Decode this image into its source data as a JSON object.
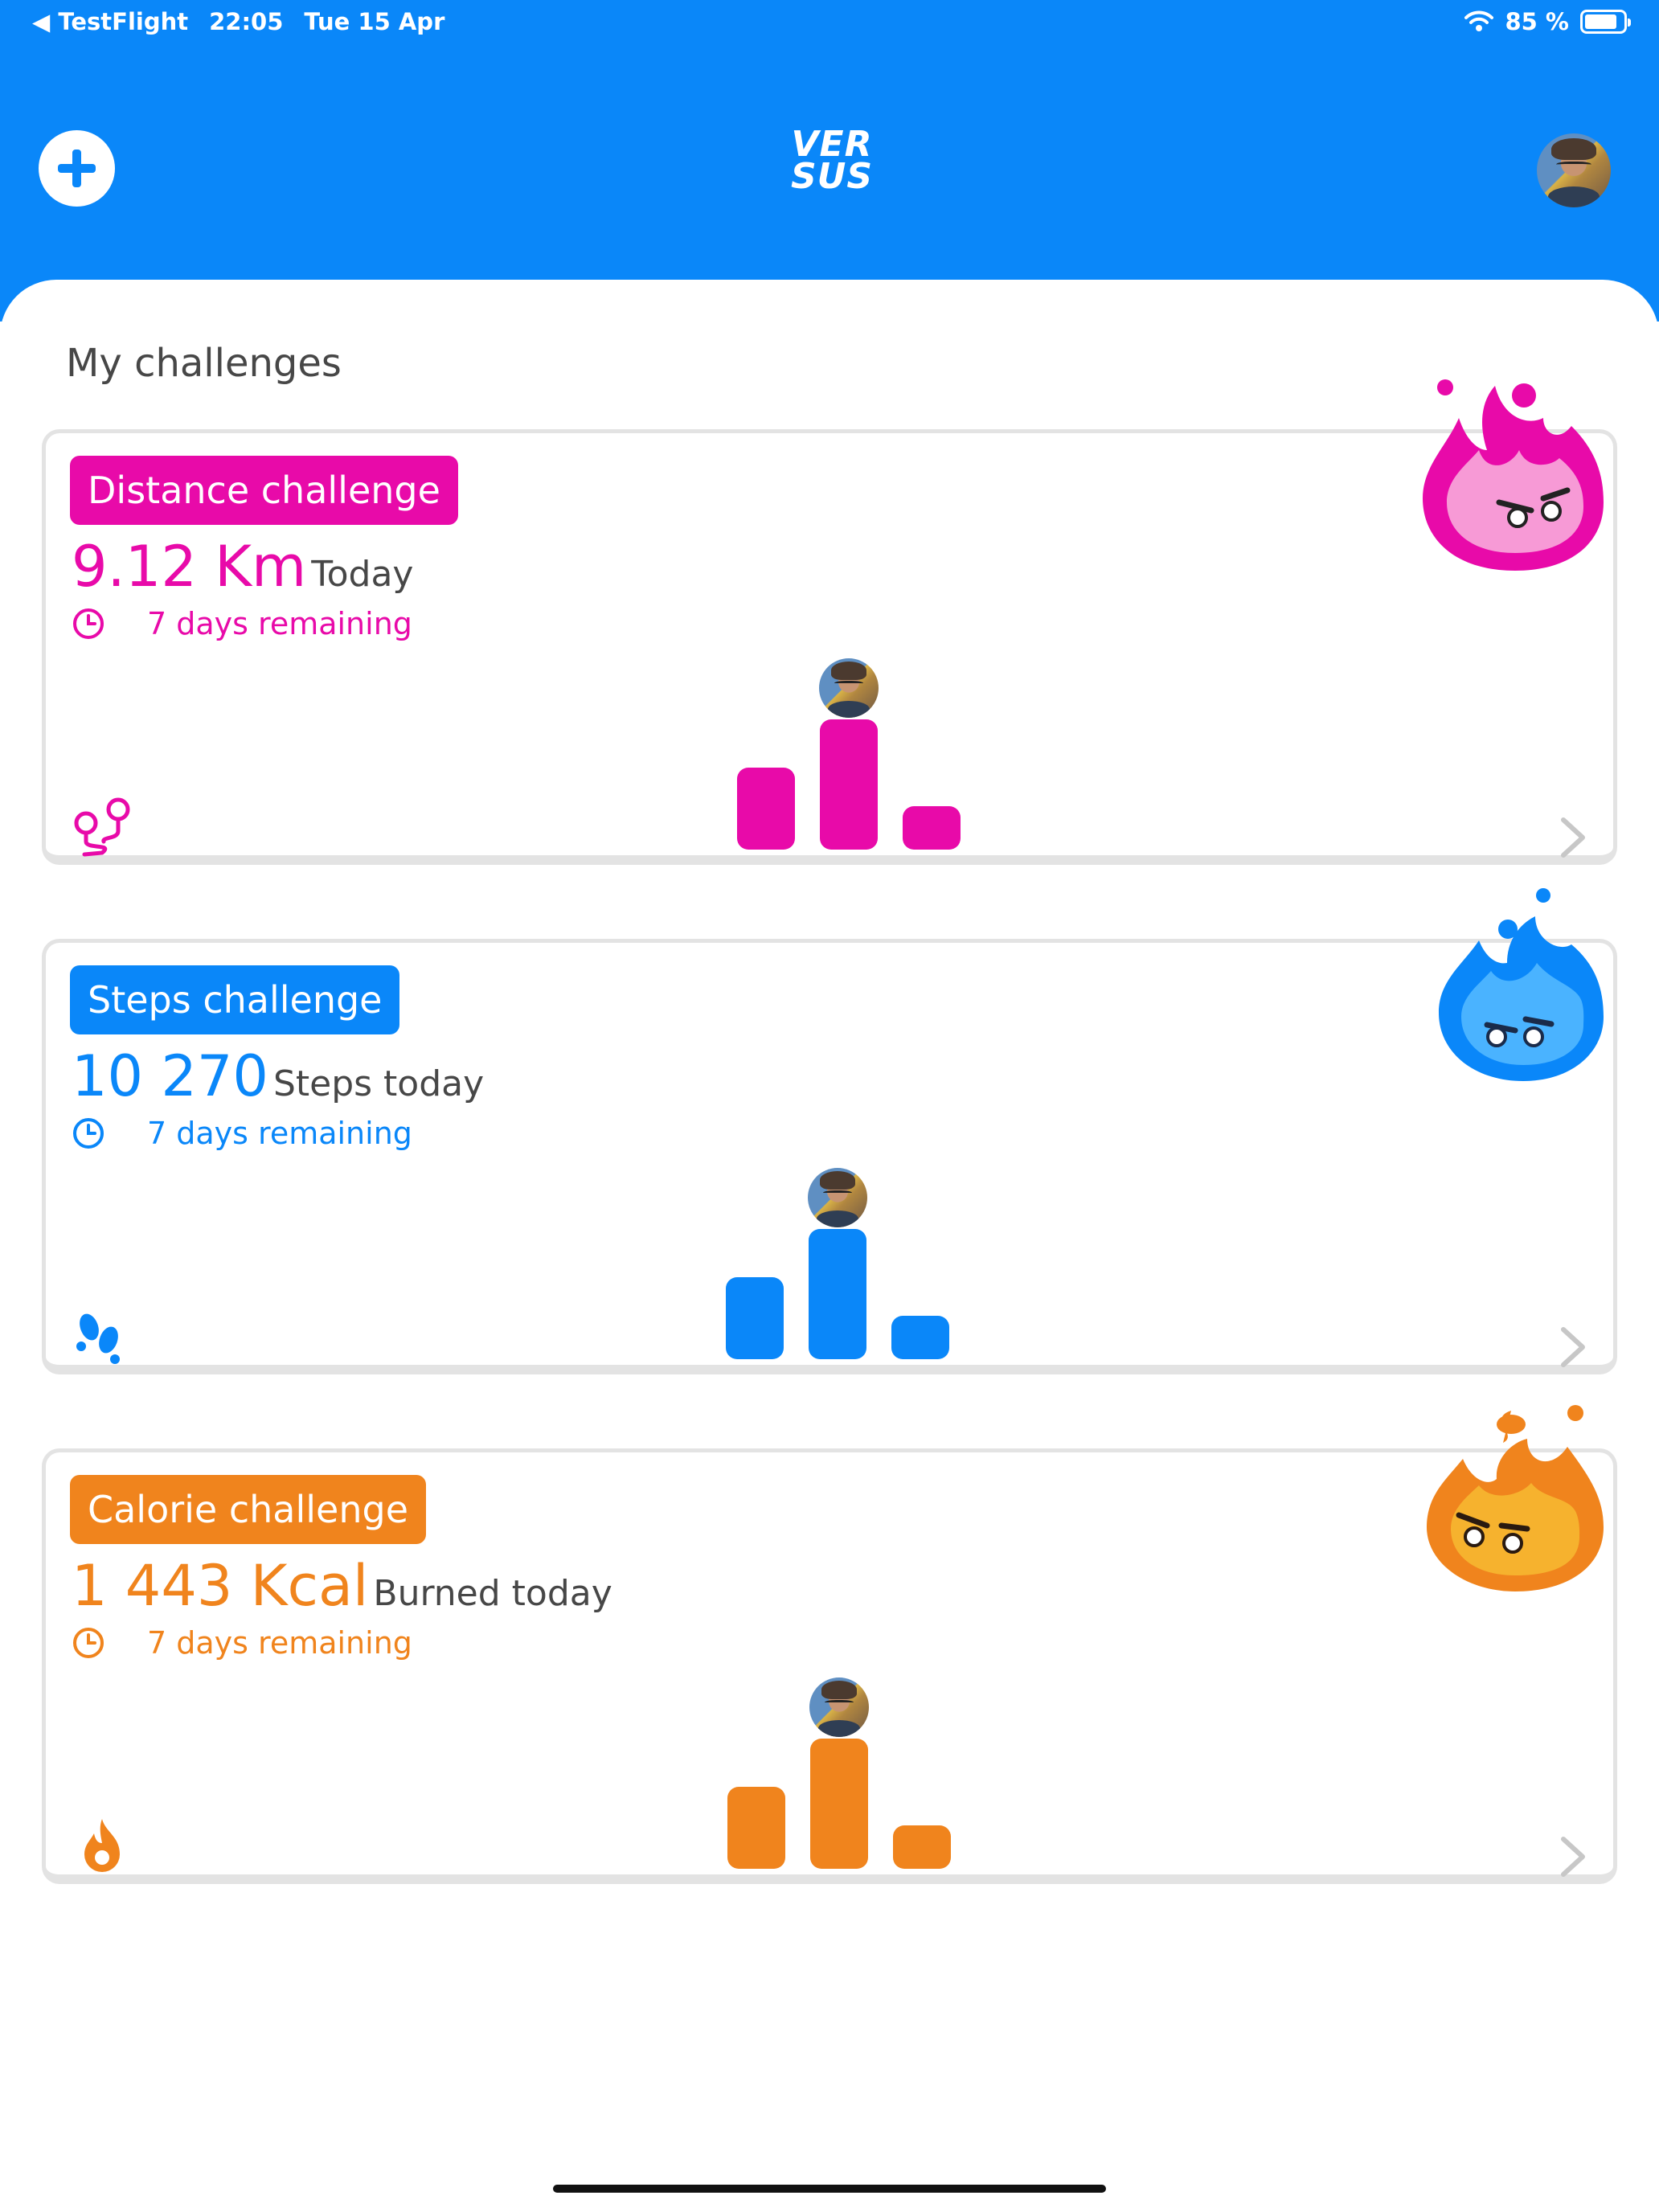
{
  "status_bar": {
    "back_app": "TestFlight",
    "time": "22:05",
    "date": "Tue 15 Apr",
    "battery": "85 %"
  },
  "header": {
    "logo_line1": "VER",
    "logo_line2": "SUS",
    "add_icon": "plus-circle-icon",
    "avatar": "profile-avatar"
  },
  "section_title": "My challenges",
  "colors": {
    "header_blue": "#0a87f9",
    "distance": "#e80aa9",
    "steps": "#0a87f9",
    "calories": "#f0841d"
  },
  "challenges": [
    {
      "label": "Distance challenge",
      "value": "9.12 Km",
      "unit_text": "Today",
      "remaining": "7 days remaining",
      "color": "#e80aa9",
      "icon": "route-pins-icon",
      "mascot": "pink-flame-mascot",
      "bar_levels": [
        0.63,
        1.0,
        0.35
      ]
    },
    {
      "label": "Steps challenge",
      "value": "10 270",
      "unit_text": "Steps today",
      "remaining": "7 days remaining",
      "color": "#0a87f9",
      "icon": "footprints-icon",
      "mascot": "blue-flame-mascot",
      "bar_levels": [
        0.63,
        1.0,
        0.35
      ]
    },
    {
      "label": "Calorie challenge",
      "value": "1 443 Kcal",
      "unit_text": "Burned today",
      "remaining": "7 days remaining",
      "color": "#f0841d",
      "icon": "flame-icon",
      "mascot": "orange-flame-mascot",
      "bar_levels": [
        0.63,
        1.0,
        0.35
      ]
    }
  ]
}
